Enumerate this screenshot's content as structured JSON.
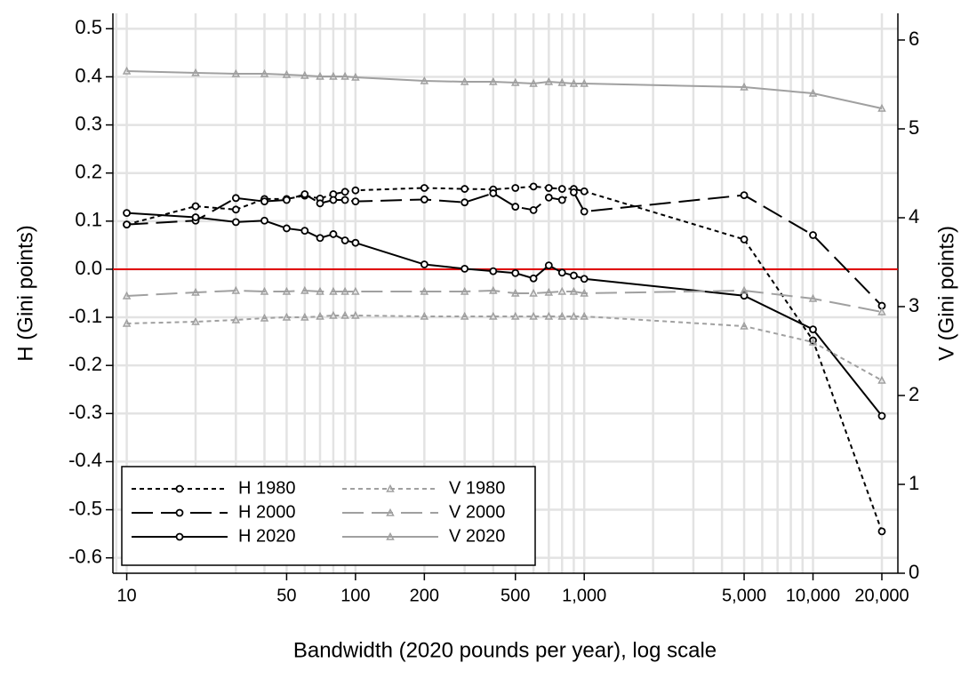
{
  "chart_data": {
    "type": "line",
    "x_label": "Bandwidth (2020 pounds per year), log scale",
    "y_label": "H (Gini points)",
    "y2_label": "V (Gini points)",
    "x": [
      10,
      20,
      30,
      40,
      50,
      60,
      70,
      80,
      90,
      100,
      200,
      300,
      400,
      500,
      600,
      700,
      800,
      900,
      1000,
      5000,
      10000,
      20000
    ],
    "series": [
      {
        "name": "H 1980",
        "color": "#000000",
        "style": "dotted",
        "marker": "circle",
        "values": [
          0.093,
          0.131,
          0.124,
          0.146,
          0.146,
          0.153,
          0.147,
          0.156,
          0.161,
          0.164,
          0.169,
          0.167,
          0.166,
          0.169,
          0.172,
          0.169,
          0.167,
          0.167,
          0.162,
          0.062,
          -0.148,
          -0.545
        ]
      },
      {
        "name": "H 2000",
        "color": "#000000",
        "style": "dashed",
        "marker": "circle",
        "values": [
          0.093,
          0.101,
          0.148,
          0.141,
          0.144,
          0.156,
          0.137,
          0.144,
          0.144,
          0.141,
          0.145,
          0.139,
          0.158,
          0.13,
          0.123,
          0.149,
          0.144,
          0.16,
          0.12,
          0.154,
          0.071,
          -0.076
        ]
      },
      {
        "name": "H 2020",
        "color": "#000000",
        "style": "solid",
        "marker": "circle",
        "values": [
          0.117,
          0.108,
          0.098,
          0.101,
          0.085,
          0.08,
          0.065,
          0.073,
          0.06,
          0.055,
          0.01,
          0.001,
          -0.004,
          -0.008,
          -0.019,
          0.008,
          -0.007,
          -0.013,
          -0.02,
          -0.055,
          -0.125,
          -0.305
        ]
      },
      {
        "name": "V 1980",
        "color": "#a0a0a0",
        "style": "dotted",
        "marker": "triangle",
        "axis": "y2",
        "values": [
          2.81,
          2.83,
          2.85,
          2.87,
          2.88,
          2.88,
          2.89,
          2.9,
          2.9,
          2.9,
          2.89,
          2.89,
          2.89,
          2.89,
          2.89,
          2.89,
          2.89,
          2.89,
          2.89,
          2.78,
          2.6,
          2.17
        ]
      },
      {
        "name": "V 2000",
        "color": "#a0a0a0",
        "style": "dashed",
        "marker": "triangle",
        "axis": "y2",
        "values": [
          3.12,
          3.16,
          3.18,
          3.17,
          3.17,
          3.18,
          3.17,
          3.17,
          3.17,
          3.17,
          3.17,
          3.17,
          3.18,
          3.15,
          3.15,
          3.16,
          3.17,
          3.17,
          3.15,
          3.18,
          3.09,
          2.94
        ]
      },
      {
        "name": "V 2020",
        "color": "#a0a0a0",
        "style": "solid",
        "marker": "triangle",
        "axis": "y2",
        "values": [
          5.65,
          5.63,
          5.62,
          5.62,
          5.61,
          5.6,
          5.59,
          5.59,
          5.59,
          5.58,
          5.54,
          5.53,
          5.53,
          5.52,
          5.51,
          5.53,
          5.52,
          5.51,
          5.51,
          5.47,
          5.4,
          5.23
        ]
      }
    ],
    "log_x": true,
    "xlim": [
      8.7,
      23500
    ],
    "xticks": [
      10,
      50,
      100,
      200,
      500,
      {
        "value": 1000,
        "label": "1,000"
      },
      {
        "value": 5000,
        "label": "5,000"
      },
      {
        "value": 10000,
        "label": "10,000"
      },
      {
        "value": 20000,
        "label": "20,000"
      }
    ],
    "ylim": [
      -0.632,
      0.532
    ],
    "yticks": [
      -0.6,
      -0.5,
      -0.4,
      -0.3,
      -0.2,
      -0.1,
      {
        "value": 0,
        "label": "0.0"
      },
      0.1,
      0.2,
      0.3,
      0.4,
      0.5
    ],
    "y2lim": [
      0,
      6.3
    ],
    "y2ticks": [
      0,
      1,
      2,
      3,
      4,
      5,
      6
    ],
    "grid": true,
    "hline": {
      "value": 0,
      "color": "#e00000"
    },
    "legend": "lower left"
  }
}
